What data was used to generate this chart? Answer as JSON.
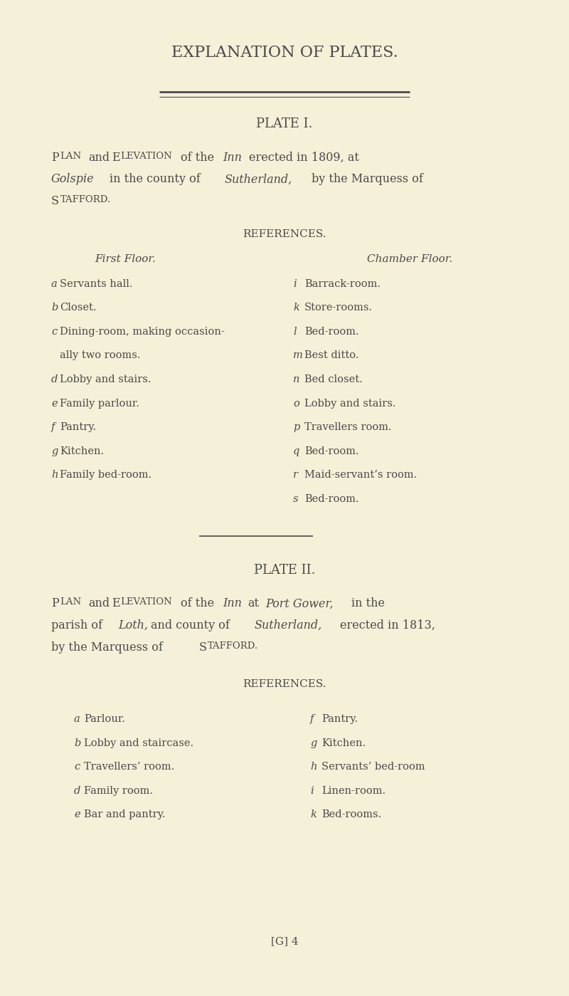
{
  "bg_color": "#f5f0d8",
  "text_color": "#4a4a4a",
  "page_width": 8.0,
  "page_height": 13.99,
  "main_title": "EXPLANATION OF PLATES.",
  "plate1_title": "PLATE I.",
  "references_label": "REFERENCES.",
  "first_floor_label": "First Floor.",
  "chamber_floor_label": "Chamber Floor.",
  "first_floor_items": [
    [
      "a",
      "Servants hall."
    ],
    [
      "b",
      "Closet."
    ],
    [
      "c",
      "Dining-room, making occasion-"
    ],
    [
      "",
      "ally two rooms."
    ],
    [
      "d",
      "Lobby and stairs."
    ],
    [
      "e",
      "Family parlour."
    ],
    [
      "f",
      "Pantry."
    ],
    [
      "g",
      "Kitchen."
    ],
    [
      "h",
      "Family bed-room."
    ]
  ],
  "chamber_floor_items": [
    [
      "i",
      "Barrack-room."
    ],
    [
      "k",
      "Store-rooms."
    ],
    [
      "l",
      "Bed-room."
    ],
    [
      "m",
      "Best ditto."
    ],
    [
      "n",
      "Bed closet."
    ],
    [
      "o",
      "Lobby and stairs."
    ],
    [
      "p",
      "Travellers room."
    ],
    [
      "q",
      "Bed-room."
    ],
    [
      "r",
      "Maid-servant’s room."
    ],
    [
      "s",
      "Bed-room."
    ]
  ],
  "plate2_title": "PLATE II.",
  "references2_label": "REFERENCES.",
  "plate2_left_items": [
    [
      "a",
      "Parlour."
    ],
    [
      "b",
      "Lobby and staircase."
    ],
    [
      "c",
      "Travellers’ room."
    ],
    [
      "d",
      "Family room."
    ],
    [
      "e",
      "Bar and pantry."
    ]
  ],
  "plate2_right_items": [
    [
      "f",
      "Pantry."
    ],
    [
      "g",
      "Kitchen."
    ],
    [
      "h",
      "Servants’ bed-room"
    ],
    [
      "i",
      "Linen-room."
    ],
    [
      "k",
      "Bed-rooms."
    ]
  ],
  "footer": "[G] 4"
}
